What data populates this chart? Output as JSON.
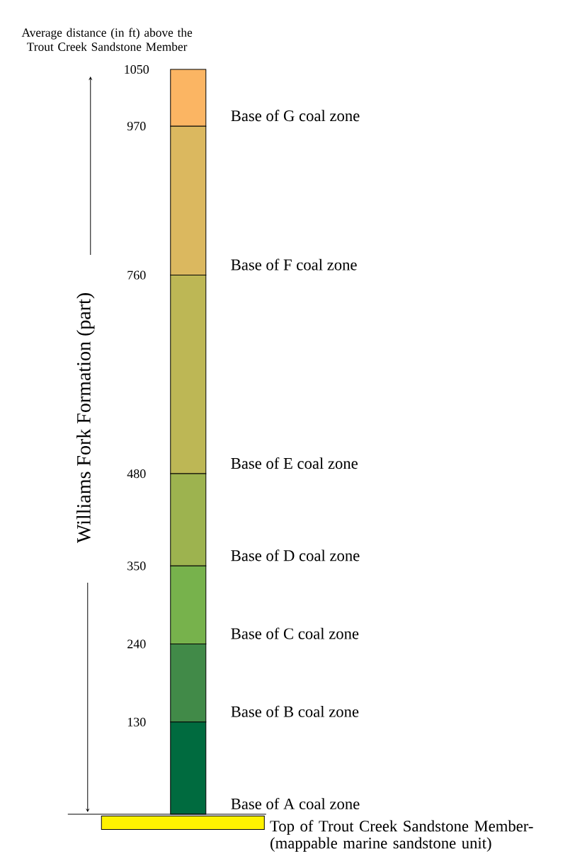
{
  "chart_data": {
    "type": "bar",
    "stacked": true,
    "title": "Average distance (in ft) above the Trout Creek Sandstone Member",
    "categories": [
      null
    ],
    "series": [
      {
        "color": "#006b3f",
        "values": [
          130
        ]
      },
      {
        "color": "#418a48",
        "values": [
          110
        ]
      },
      {
        "color": "#77b24c",
        "values": [
          110
        ]
      },
      {
        "color": "#9db34f",
        "values": [
          130
        ]
      },
      {
        "color": "#bdb755",
        "values": [
          280
        ]
      },
      {
        "color": "#dbb85f",
        "values": [
          210
        ]
      },
      {
        "color": "#fbb563",
        "values": [
          80
        ]
      }
    ],
    "ylim": [
      0,
      1050
    ],
    "yticks": [
      130,
      240,
      350,
      480,
      760,
      970,
      1050
    ],
    "annotations": [
      "Base of A coal zone",
      "Base of B coal zone",
      "Base of C coal zone",
      "Base of D coal zone",
      "Base of E coal zone",
      "Base of F coal zone",
      "Base of G coal zone",
      "Williams Fork Formation (part)",
      "Top of Trout Creek Sandstone Member- (mappable marine sandstone unit)"
    ]
  }
}
